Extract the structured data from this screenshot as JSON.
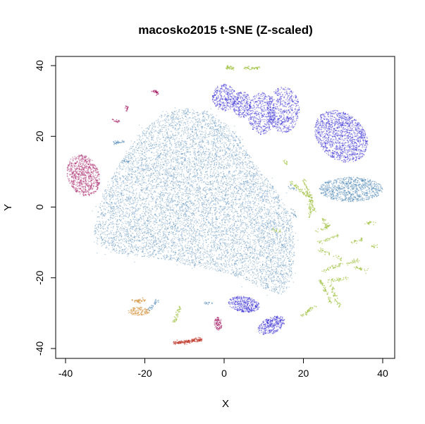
{
  "chart_data": {
    "type": "scatter",
    "title": "macosko2015 t-SNE (Z-scaled)",
    "xlabel": "X",
    "ylabel": "Y",
    "xlim": [
      -42,
      42
    ],
    "ylim": [
      -42,
      42
    ],
    "x_ticks": [
      -40,
      -20,
      0,
      20,
      40
    ],
    "y_ticks": [
      -40,
      -20,
      0,
      20,
      40
    ],
    "grid": false,
    "legend": "none",
    "clusters": [
      {
        "color": "#4682b4",
        "type": "main-blob"
      },
      {
        "color": "#4682b4",
        "type": "ellipse",
        "cx": 32,
        "cy": 5,
        "rx": 8,
        "ry": 3.5,
        "n": 900
      },
      {
        "color": "#2a1fd0",
        "type": "ellipse",
        "cx": 29.5,
        "cy": 20,
        "rx": 6,
        "ry": 8,
        "rot": 35,
        "n": 1300
      },
      {
        "color": "#2a1fd0",
        "type": "ellipse",
        "cx": 15,
        "cy": 27.5,
        "rx": 4,
        "ry": 6.5,
        "n": 550
      },
      {
        "color": "#2a1fd0",
        "type": "ellipse",
        "cx": 9.5,
        "cy": 26.5,
        "rx": 3.5,
        "ry": 6,
        "n": 450
      },
      {
        "color": "#2a1fd0",
        "type": "ellipse",
        "cx": 0,
        "cy": 31,
        "rx": 3,
        "ry": 3.8,
        "n": 320
      },
      {
        "color": "#2a1fd0",
        "type": "ellipse",
        "cx": 4.5,
        "cy": 29,
        "rx": 2.3,
        "ry": 3.8,
        "n": 260
      },
      {
        "color": "#2a1fd0",
        "type": "ellipse",
        "cx": 5,
        "cy": -27.5,
        "rx": 4,
        "ry": 2.2,
        "rot": -10,
        "n": 380
      },
      {
        "color": "#2a1fd0",
        "type": "ellipse",
        "cx": 12,
        "cy": -33.5,
        "rx": 3.8,
        "ry": 2.2,
        "rot": 30,
        "n": 330
      },
      {
        "color": "#a0115e",
        "type": "ellipse",
        "cx": -35.5,
        "cy": 9,
        "rx": 4,
        "ry": 6,
        "rot": 15,
        "n": 750
      },
      {
        "color": "#a0115e",
        "type": "ellipse",
        "cx": -1.5,
        "cy": -33,
        "rx": 1,
        "ry": 1.8,
        "n": 110
      },
      {
        "color": "#a0115e",
        "type": "segment",
        "x1": -18,
        "y1": 33,
        "x2": -16.5,
        "y2": 32.2,
        "n": 30
      },
      {
        "color": "#a0115e",
        "type": "segment",
        "x1": -24.5,
        "y1": 28.5,
        "x2": -24.5,
        "y2": 27.5,
        "n": 15
      },
      {
        "color": "#a0115e",
        "type": "segment",
        "x1": -28,
        "y1": 24.5,
        "x2": -26.5,
        "y2": 24.2,
        "n": 15
      },
      {
        "color": "#d08a2c",
        "type": "ellipse",
        "cx": -21.5,
        "cy": -29.5,
        "rx": 2.8,
        "ry": 1.2,
        "n": 150
      },
      {
        "color": "#d08a2c",
        "type": "segment",
        "x1": -23,
        "y1": -26.5,
        "x2": -20,
        "y2": -26.5,
        "n": 40
      },
      {
        "color": "#c0392b",
        "type": "segment",
        "x1": -13,
        "y1": -38.5,
        "x2": -5.5,
        "y2": -37.5,
        "n": 170
      },
      {
        "color": "#9cc03a",
        "type": "segment",
        "x1": 0.5,
        "y1": 39.5,
        "x2": 2.5,
        "y2": 39.4,
        "n": 35
      },
      {
        "color": "#9cc03a",
        "type": "segment",
        "x1": 5,
        "y1": 39.3,
        "x2": 9,
        "y2": 39.2,
        "n": 45
      },
      {
        "color": "#9cc03a",
        "type": "segment",
        "x1": 17,
        "y1": 7,
        "x2": 21,
        "y2": 3,
        "n": 50
      },
      {
        "color": "#9cc03a",
        "type": "segment",
        "x1": 20,
        "y1": 8,
        "x2": 23,
        "y2": -2,
        "n": 70
      },
      {
        "color": "#9cc03a",
        "type": "segment",
        "x1": 22,
        "y1": 4,
        "x2": 21.5,
        "y2": -3,
        "n": 50
      },
      {
        "color": "#9cc03a",
        "type": "segment",
        "x1": 25,
        "y1": -3,
        "x2": 26,
        "y2": -6,
        "n": 25
      },
      {
        "color": "#9cc03a",
        "type": "segment",
        "x1": 23,
        "y1": -7,
        "x2": 27,
        "y2": -5,
        "n": 25
      },
      {
        "color": "#9cc03a",
        "type": "segment",
        "x1": 24,
        "y1": -10,
        "x2": 29,
        "y2": -8,
        "n": 35
      },
      {
        "color": "#9cc03a",
        "type": "segment",
        "x1": 24,
        "y1": -12,
        "x2": 30,
        "y2": -15,
        "n": 35
      },
      {
        "color": "#9cc03a",
        "type": "segment",
        "x1": 32,
        "y1": -10,
        "x2": 35,
        "y2": -9,
        "n": 25
      },
      {
        "color": "#9cc03a",
        "type": "segment",
        "x1": 36,
        "y1": -4.5,
        "x2": 38,
        "y2": -4.5,
        "n": 20
      },
      {
        "color": "#9cc03a",
        "type": "segment",
        "x1": 37.5,
        "y1": -11,
        "x2": 38.5,
        "y2": -11,
        "n": 12
      },
      {
        "color": "#9cc03a",
        "type": "segment",
        "x1": 31,
        "y1": -16,
        "x2": 34,
        "y2": -15,
        "n": 25
      },
      {
        "color": "#9cc03a",
        "type": "segment",
        "x1": 33,
        "y1": -17,
        "x2": 36,
        "y2": -18,
        "n": 25
      },
      {
        "color": "#9cc03a",
        "type": "segment",
        "x1": 25,
        "y1": -18,
        "x2": 30,
        "y2": -16,
        "n": 40
      },
      {
        "color": "#9cc03a",
        "type": "segment",
        "x1": 26,
        "y1": -21,
        "x2": 31,
        "y2": -20,
        "n": 35
      },
      {
        "color": "#9cc03a",
        "type": "segment",
        "x1": 27,
        "y1": -22,
        "x2": 29,
        "y2": -28,
        "n": 45
      },
      {
        "color": "#9cc03a",
        "type": "segment",
        "x1": 24,
        "y1": -20,
        "x2": 27,
        "y2": -27,
        "n": 55
      },
      {
        "color": "#9cc03a",
        "type": "segment",
        "x1": 19.5,
        "y1": -31,
        "x2": 23,
        "y2": -28,
        "n": 40
      },
      {
        "color": "#9cc03a",
        "type": "segment",
        "x1": 12,
        "y1": -6,
        "x2": 14,
        "y2": -7,
        "n": 15
      },
      {
        "color": "#9cc03a",
        "type": "segment",
        "x1": -11,
        "y1": -28,
        "x2": -12.5,
        "y2": -32.5,
        "n": 40
      },
      {
        "color": "#9cc03a",
        "type": "segment",
        "x1": 15,
        "y1": 13,
        "x2": 16,
        "y2": 12,
        "n": 12
      },
      {
        "color": "#4682b4",
        "type": "segment",
        "x1": -28,
        "y1": 18,
        "x2": -25,
        "y2": 18.5,
        "n": 25
      },
      {
        "color": "#4682b4",
        "type": "segment",
        "x1": -25.5,
        "y1": 13,
        "x2": -24,
        "y2": 13,
        "n": 12
      },
      {
        "color": "#4682b4",
        "type": "segment",
        "x1": -19,
        "y1": -29,
        "x2": -17,
        "y2": -26.5,
        "n": 25
      },
      {
        "color": "#4682b4",
        "type": "segment",
        "x1": -5,
        "y1": -27,
        "x2": -3,
        "y2": -27.2,
        "n": 12
      },
      {
        "color": "#4682b4",
        "type": "segment",
        "x1": 17,
        "y1": -1,
        "x2": 18,
        "y2": -3,
        "n": 12
      },
      {
        "color": "#4682b4",
        "type": "segment",
        "x1": 16,
        "y1": 6,
        "x2": 18,
        "y2": 5,
        "n": 12
      }
    ]
  }
}
